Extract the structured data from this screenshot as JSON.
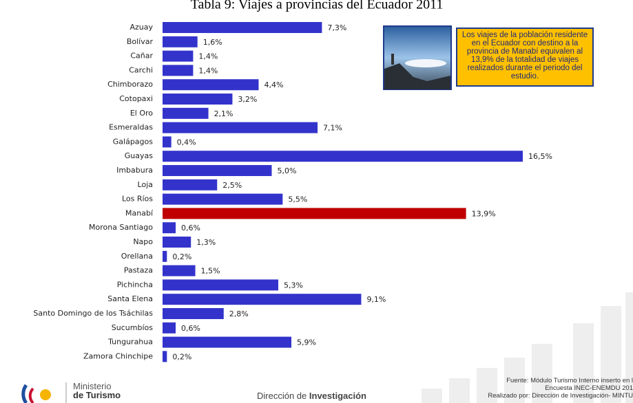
{
  "chart_data": {
    "type": "barh",
    "title": "Tabla 9: Viajes a provincias del Ecuador 2011",
    "categories": [
      "Azuay",
      "Bolívar",
      "Cañar",
      "Carchi",
      "Chimborazo",
      "Cotopaxi",
      "El Oro",
      "Esmeraldas",
      "Galápagos",
      "Guayas",
      "Imbabura",
      "Loja",
      "Los Ríos",
      "Manabí",
      "Morona Santiago",
      "Napo",
      "Orellana",
      "Pastaza",
      "Pichincha",
      "Santa Elena",
      "Santo Domingo de los Tsáchilas",
      "Sucumbíos",
      "Tungurahua",
      "Zamora Chinchipe"
    ],
    "values": [
      7.3,
      1.6,
      1.4,
      1.4,
      4.4,
      3.2,
      2.1,
      7.1,
      0.4,
      16.5,
      5.0,
      2.5,
      5.5,
      13.9,
      0.6,
      1.3,
      0.2,
      1.5,
      5.3,
      9.1,
      2.8,
      0.6,
      5.9,
      0.2
    ],
    "value_labels": [
      "7,3%",
      "1,6%",
      "1,4%",
      "1,4%",
      "4,4%",
      "3,2%",
      "2,1%",
      "7,1%",
      "0,4%",
      "16,5%",
      "5,0%",
      "2,5%",
      "5,5%",
      "13,9%",
      "0,6%",
      "1,3%",
      "0,2%",
      "1,5%",
      "5,3%",
      "9,1%",
      "2,8%",
      "0,6%",
      "5,9%",
      "0,2%"
    ],
    "colors": [
      "#3333cc",
      "#3333cc",
      "#3333cc",
      "#3333cc",
      "#3333cc",
      "#3333cc",
      "#3333cc",
      "#3333cc",
      "#3333cc",
      "#3333cc",
      "#3333cc",
      "#3333cc",
      "#3333cc",
      "#c00000",
      "#3333cc",
      "#3333cc",
      "#3333cc",
      "#3333cc",
      "#3333cc",
      "#3333cc",
      "#3333cc",
      "#3333cc",
      "#3333cc",
      "#3333cc"
    ]
  },
  "callout": {
    "text": "Los viajes de la población residente en el Ecuador con destino a la provincia de Manabí equivalen al 13,9% de la totalidad de viajes realizados durante el periodo del estudio."
  },
  "footer": {
    "logo_line1": "Ministerio",
    "logo_line2": "de Turismo",
    "center": "Dirección de",
    "center_bold": "Investigación",
    "source": [
      "Fuente:  Módulo Turismo Interno inserto en l",
      "Encuesta INEC-ENEMDU 201",
      "Realizado por: Dirección de Investigación- MINTU"
    ]
  }
}
